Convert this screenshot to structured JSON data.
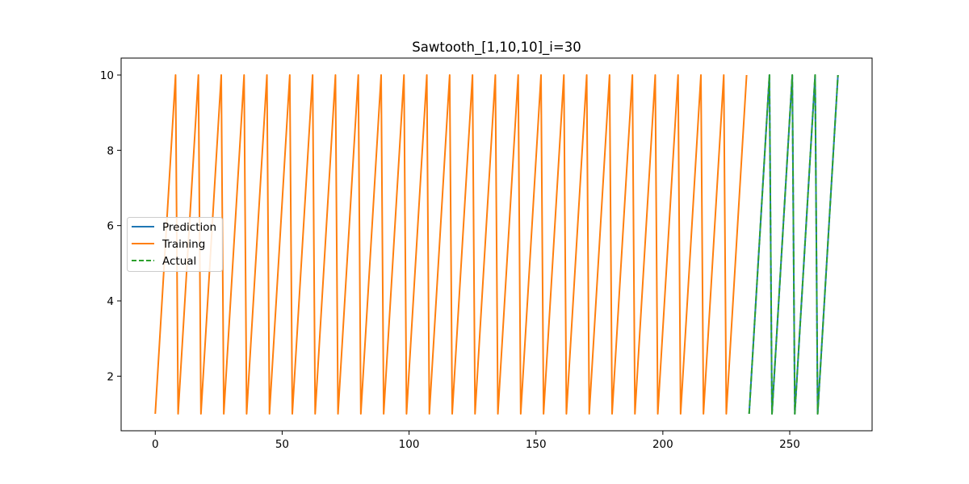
{
  "chart_data": {
    "type": "line",
    "title": "Sawtooth_[1,10,10]_i=30",
    "xlabel": "",
    "ylabel": "",
    "xlim": [
      -13.45,
      282.45
    ],
    "ylim": [
      0.55,
      10.45
    ],
    "xticks": [
      0,
      50,
      100,
      150,
      200,
      250
    ],
    "yticks": [
      2,
      4,
      6,
      8,
      10
    ],
    "grid": false,
    "legend_position": "center-left",
    "waveform": {
      "min": 1,
      "max": 10,
      "period": 9
    },
    "series": [
      {
        "name": "Prediction",
        "color": "#1f77b4",
        "style": "solid",
        "x_start": 234,
        "x_end": 269
      },
      {
        "name": "Training",
        "color": "#ff7f0e",
        "style": "solid",
        "x_start": 0,
        "x_end": 233
      },
      {
        "name": "Actual",
        "color": "#2ca02c",
        "style": "dashed",
        "x_start": 234,
        "x_end": 269
      }
    ]
  }
}
